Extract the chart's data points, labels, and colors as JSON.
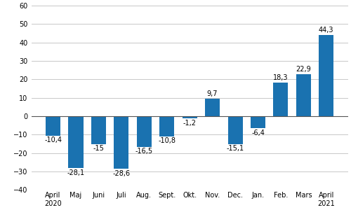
{
  "categories": [
    "April\n2020",
    "Maj",
    "Juni",
    "Juli",
    "Aug.",
    "Sept.",
    "Okt.",
    "Nov.",
    "Dec.",
    "Jan.",
    "Feb.",
    "Mars",
    "April\n2021"
  ],
  "values": [
    -10.4,
    -28.1,
    -15.0,
    -28.6,
    -16.5,
    -10.8,
    -1.2,
    9.7,
    -15.1,
    -6.4,
    18.3,
    22.9,
    44.3
  ],
  "bar_color": "#1a72b0",
  "ylim": [
    -40,
    60
  ],
  "yticks": [
    -40,
    -30,
    -20,
    -10,
    0,
    10,
    20,
    30,
    40,
    50,
    60
  ],
  "label_fontsize": 7.0,
  "tick_fontsize": 7.0,
  "background_color": "#ffffff",
  "grid_color": "#c8c8c8",
  "bar_width": 0.65
}
